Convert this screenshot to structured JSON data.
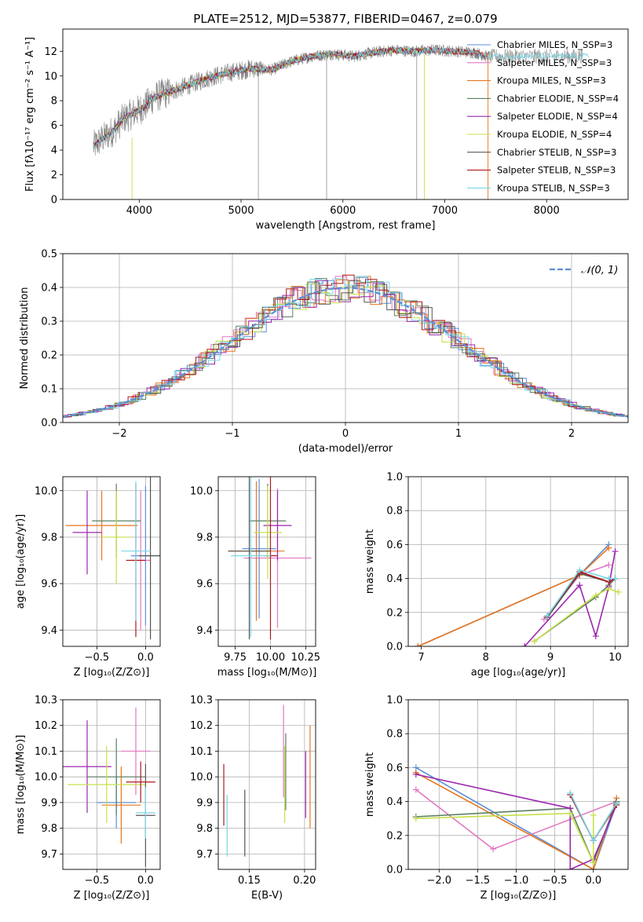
{
  "colors": {
    "chabrier_miles": "#5b8fd8",
    "salpeter_miles": "#e377c2",
    "kroupa_miles": "#e8761e",
    "chabrier_elodie": "#5a8060",
    "salpeter_elodie": "#9b27af",
    "kroupa_elodie": "#c6e04a",
    "chabrier_stelib": "#555555",
    "salpeter_stelib": "#b0191b",
    "kroupa_stelib": "#7ad7e6",
    "data": "#808080",
    "grid": "#b0b0b0"
  },
  "chart_data": [
    {
      "id": "spectrum",
      "type": "line",
      "title": "PLATE=2512, MJD=53877, FIBERID=0467, z=0.079",
      "xlabel": "wavelength [Angstrom, rest frame]",
      "ylabel": "Flux [fλ10⁻¹⁷ erg cm⁻² s⁻¹ A⁻¹]",
      "xlim": [
        3250,
        8800
      ],
      "ylim": [
        0,
        13.8
      ],
      "xticks": [
        "4000",
        "5000",
        "6000",
        "7000",
        "8000"
      ],
      "yticks": [
        "0",
        "2",
        "4",
        "6",
        "8",
        "10",
        "12"
      ],
      "grid": false,
      "legend_position": "right",
      "legend": [
        "Chabrier MILES, N_SSP=3",
        "Salpeter MILES, N_SSP=3",
        "Kroupa MILES, N_SSP=3",
        "Chabrier ELODIE, N_SSP=4",
        "Salpeter ELODIE, N_SSP=4",
        "Kroupa ELODIE, N_SSP=4",
        "Chabrier STELIB, N_SSP=3",
        "Salpeter STELIB, N_SSP=3",
        "Kroupa STELIB, N_SSP=3"
      ],
      "continuum": {
        "x": [
          3550,
          3650,
          3750,
          3850,
          3950,
          4050,
          4150,
          4300,
          4500,
          4700,
          4900,
          5100,
          5300,
          5500,
          5700,
          5900,
          6100,
          6300,
          6500,
          6700,
          6900,
          7100,
          7300,
          7400
        ],
        "y": [
          4.3,
          5.0,
          5.6,
          6.6,
          7.0,
          7.5,
          8.3,
          8.7,
          9.3,
          9.9,
          10.3,
          10.6,
          10.5,
          11.2,
          11.6,
          11.8,
          11.6,
          11.9,
          12.1,
          12.0,
          12.1,
          12.0,
          11.9,
          11.6
        ]
      }
    },
    {
      "id": "residuals",
      "type": "histogram",
      "xlabel": "(data-model)/error",
      "ylabel": "Normed distribution",
      "xlim": [
        -2.5,
        2.5
      ],
      "ylim": [
        0,
        0.5
      ],
      "xticks": [
        "−2",
        "−1",
        "0",
        "1",
        "2"
      ],
      "yticks": [
        "0.0",
        "0.1",
        "0.2",
        "0.3",
        "0.4",
        "0.5"
      ],
      "grid": true,
      "legend_position": "top-right",
      "legend": [
        "𝒩(0, 1)"
      ],
      "bin_width": 0.1
    },
    {
      "id": "age_vs_Z",
      "type": "errorbar",
      "xlabel": "Z [log₁₀(Z/Z⊙)]",
      "ylabel": "age  [log₁₀(age/yr)]",
      "xlim": [
        -0.85,
        0.15
      ],
      "ylim": [
        9.33,
        10.06
      ],
      "xticks": [
        "−0.5",
        "0.0"
      ],
      "yticks": [
        "9.4",
        "9.6",
        "9.8",
        "10.0"
      ],
      "points": [
        {
          "x": 0.0,
          "y": 9.72,
          "xerr": 0.15,
          "yerr": 0.3,
          "c": "chabrier_miles"
        },
        {
          "x": -0.05,
          "y": 9.7,
          "xerr": 0.1,
          "yerr": 0.3,
          "c": "salpeter_miles"
        },
        {
          "x": -0.45,
          "y": 9.85,
          "xerr": 0.37,
          "yerr": 0.15,
          "c": "kroupa_miles"
        },
        {
          "x": -0.3,
          "y": 9.87,
          "xerr": 0.25,
          "yerr": 0.16,
          "c": "chabrier_elodie"
        },
        {
          "x": -0.6,
          "y": 9.82,
          "xerr": 0.15,
          "yerr": 0.18,
          "c": "salpeter_elodie"
        },
        {
          "x": -0.3,
          "y": 9.8,
          "xerr": 0.15,
          "yerr": 0.2,
          "c": "kroupa_elodie"
        },
        {
          "x": 0.05,
          "y": 9.72,
          "xerr": 0.12,
          "yerr": 0.36,
          "c": "chabrier_stelib"
        },
        {
          "x": -0.1,
          "y": 9.7,
          "xerr": 0.1,
          "yerr": 0.33,
          "c": "salpeter_stelib"
        },
        {
          "x": -0.1,
          "y": 9.74,
          "xerr": 0.15,
          "yerr": 0.3,
          "c": "kroupa_stelib"
        }
      ]
    },
    {
      "id": "age_vs_mass",
      "type": "errorbar",
      "xlabel": "mass [log₁₀(M/M⊙)]",
      "ylabel": "",
      "xlim": [
        9.63,
        10.32
      ],
      "ylim": [
        9.33,
        10.06
      ],
      "xticks": [
        "9.75",
        "10.00",
        "10.25"
      ],
      "yticks": [
        "9.4",
        "9.6",
        "9.8",
        "10.0"
      ],
      "points": [
        {
          "x": 9.92,
          "y": 9.75,
          "xerr": 0.12,
          "yerr": 0.3,
          "c": "chabrier_miles"
        },
        {
          "x": 10.05,
          "y": 9.71,
          "xerr": 0.24,
          "yerr": 0.3,
          "c": "salpeter_miles"
        },
        {
          "x": 9.9,
          "y": 9.74,
          "xerr": 0.2,
          "yerr": 0.3,
          "c": "kroupa_miles"
        },
        {
          "x": 9.98,
          "y": 9.87,
          "xerr": 0.13,
          "yerr": 0.16,
          "c": "chabrier_elodie"
        },
        {
          "x": 10.05,
          "y": 9.85,
          "xerr": 0.1,
          "yerr": 0.15,
          "c": "salpeter_elodie"
        },
        {
          "x": 9.98,
          "y": 9.82,
          "xerr": 0.1,
          "yerr": 0.2,
          "c": "kroupa_elodie"
        },
        {
          "x": 9.85,
          "y": 9.74,
          "xerr": 0.15,
          "yerr": 0.38,
          "c": "chabrier_stelib"
        },
        {
          "x": 10.0,
          "y": 9.72,
          "xerr": 0.05,
          "yerr": 0.36,
          "c": "salpeter_stelib"
        },
        {
          "x": 9.86,
          "y": 9.72,
          "xerr": 0.14,
          "yerr": 0.35,
          "c": "kroupa_stelib"
        }
      ]
    },
    {
      "id": "weight_vs_age",
      "type": "line",
      "xlabel": "age  [log₁₀(age/yr)]",
      "ylabel": "mass weight",
      "xlim": [
        6.8,
        10.2
      ],
      "ylim": [
        0,
        1
      ],
      "xticks": [
        "7",
        "8",
        "9",
        "10"
      ],
      "yticks": [
        "0.0",
        "0.2",
        "0.4",
        "0.6",
        "0.8",
        "1.0"
      ],
      "grid": true,
      "series": [
        {
          "c": "chabrier_miles",
          "x": [
            6.95,
            9.45,
            9.9
          ],
          "y": [
            0.0,
            0.42,
            0.6
          ]
        },
        {
          "c": "salpeter_miles",
          "x": [
            8.9,
            9.45,
            9.9
          ],
          "y": [
            0.16,
            0.42,
            0.48
          ]
        },
        {
          "c": "kroupa_miles",
          "x": [
            6.95,
            9.45,
            9.9
          ],
          "y": [
            0.0,
            0.42,
            0.58
          ]
        },
        {
          "c": "chabrier_elodie",
          "x": [
            8.75,
            9.7,
            9.9,
            10.0
          ],
          "y": [
            0.03,
            0.29,
            0.36,
            0.4
          ]
        },
        {
          "c": "salpeter_elodie",
          "x": [
            8.6,
            9.45,
            9.7,
            9.9,
            10.0
          ],
          "y": [
            0.0,
            0.36,
            0.06,
            0.35,
            0.56
          ]
        },
        {
          "c": "kroupa_elodie",
          "x": [
            8.75,
            9.7,
            9.9,
            10.05
          ],
          "y": [
            0.03,
            0.3,
            0.34,
            0.32
          ]
        },
        {
          "c": "chabrier_stelib",
          "x": [
            8.95,
            9.45,
            9.9,
            10.0
          ],
          "y": [
            0.17,
            0.43,
            0.38,
            0.4
          ]
        },
        {
          "c": "salpeter_stelib",
          "x": [
            8.95,
            9.45,
            9.9,
            10.0
          ],
          "y": [
            0.18,
            0.44,
            0.38,
            0.4
          ]
        },
        {
          "c": "kroupa_stelib",
          "x": [
            8.95,
            9.45,
            9.9,
            10.0
          ],
          "y": [
            0.18,
            0.45,
            0.4,
            0.4
          ]
        }
      ]
    },
    {
      "id": "mass_vs_Z",
      "type": "errorbar",
      "xlabel": "Z [log₁₀(Z/Z⊙)]",
      "ylabel": "mass [log₁₀(M/M⊙)]",
      "xlim": [
        -0.85,
        0.15
      ],
      "ylim": [
        9.64,
        10.3
      ],
      "xticks": [
        "−0.5",
        "0.0"
      ],
      "yticks": [
        "9.7",
        "9.8",
        "9.9",
        "10.0",
        "10.1",
        "10.2",
        "10.3"
      ],
      "points": [
        {
          "x": -0.3,
          "y": 9.9,
          "xerr": 0.2,
          "yerr": 0.1,
          "c": "chabrier_miles"
        },
        {
          "x": -0.1,
          "y": 10.1,
          "xerr": 0.15,
          "yerr": 0.17,
          "c": "salpeter_miles"
        },
        {
          "x": -0.25,
          "y": 9.89,
          "xerr": 0.2,
          "yerr": 0.15,
          "c": "kroupa_miles"
        },
        {
          "x": -0.3,
          "y": 10.0,
          "xerr": 0.3,
          "yerr": 0.15,
          "c": "chabrier_elodie"
        },
        {
          "x": -0.6,
          "y": 10.04,
          "xerr": 0.25,
          "yerr": 0.18,
          "c": "salpeter_elodie"
        },
        {
          "x": -0.4,
          "y": 9.97,
          "xerr": 0.4,
          "yerr": 0.15,
          "c": "kroupa_elodie"
        },
        {
          "x": 0.0,
          "y": 9.85,
          "xerr": 0.1,
          "yerr": 0.2,
          "c": "chabrier_stelib"
        },
        {
          "x": -0.05,
          "y": 9.98,
          "xerr": 0.15,
          "yerr": 0.08,
          "c": "salpeter_stelib"
        },
        {
          "x": 0.0,
          "y": 9.86,
          "xerr": 0.1,
          "yerr": 0.1,
          "c": "kroupa_stelib"
        }
      ]
    },
    {
      "id": "mass_vs_ebv",
      "type": "errorbar",
      "xlabel": "E(B-V)",
      "ylabel": "",
      "xlim": [
        0.122,
        0.21
      ],
      "ylim": [
        9.64,
        10.3
      ],
      "xticks": [
        "0.15",
        "0.20"
      ],
      "yticks": [
        "9.7",
        "9.8",
        "9.9",
        "10.0",
        "10.1",
        "10.2",
        "10.3"
      ],
      "points": [
        {
          "x": 0.205,
          "y": 10.0,
          "xerr": 0.0,
          "yerr": 0.2,
          "c": "kroupa_miles"
        },
        {
          "x": 0.181,
          "y": 10.1,
          "xerr": 0.0,
          "yerr": 0.18,
          "c": "salpeter_miles"
        },
        {
          "x": 0.183,
          "y": 10.02,
          "xerr": 0.0,
          "yerr": 0.15,
          "c": "chabrier_elodie"
        },
        {
          "x": 0.201,
          "y": 9.97,
          "xerr": 0.0,
          "yerr": 0.13,
          "c": "salpeter_elodie"
        },
        {
          "x": 0.182,
          "y": 9.97,
          "xerr": 0.0,
          "yerr": 0.15,
          "c": "kroupa_elodie"
        },
        {
          "x": 0.146,
          "y": 9.82,
          "xerr": 0.0,
          "yerr": 0.13,
          "c": "chabrier_stelib"
        },
        {
          "x": 0.127,
          "y": 9.93,
          "xerr": 0.0,
          "yerr": 0.12,
          "c": "salpeter_stelib"
        },
        {
          "x": 0.13,
          "y": 9.81,
          "xerr": 0.0,
          "yerr": 0.12,
          "c": "kroupa_stelib"
        }
      ]
    },
    {
      "id": "weight_vs_Z",
      "type": "line",
      "xlabel": "Z [log₁₀(Z/Z⊙)]",
      "ylabel": "mass weight",
      "xlim": [
        -2.4,
        0.45
      ],
      "ylim": [
        0,
        1
      ],
      "xticks": [
        "−2.0",
        "−1.5",
        "−1.0",
        "−0.5",
        "0.0"
      ],
      "yticks": [
        "0.0",
        "0.2",
        "0.4",
        "0.6",
        "0.8",
        "1.0"
      ],
      "grid": true,
      "series": [
        {
          "c": "chabrier_miles",
          "x": [
            -2.3,
            0.0,
            0.3
          ],
          "y": [
            0.6,
            0.0,
            0.39
          ]
        },
        {
          "c": "salpeter_miles",
          "x": [
            -2.3,
            -1.3,
            0.3
          ],
          "y": [
            0.47,
            0.12,
            0.4
          ]
        },
        {
          "c": "kroupa_miles",
          "x": [
            -2.3,
            0.0,
            0.3
          ],
          "y": [
            0.57,
            0.0,
            0.42
          ]
        },
        {
          "c": "chabrier_elodie",
          "x": [
            -2.3,
            -0.3,
            0.0,
            0.3
          ],
          "y": [
            0.31,
            0.36,
            0.04,
            0.4
          ]
        },
        {
          "c": "salpeter_elodie",
          "x": [
            -2.3,
            -0.3,
            -0.3,
            0.0,
            0.3
          ],
          "y": [
            0.56,
            0.36,
            0.0,
            0.06,
            0.38
          ]
        },
        {
          "c": "kroupa_elodie",
          "x": [
            -2.3,
            -0.3,
            0.0,
            0.0
          ],
          "y": [
            0.3,
            0.33,
            0.04,
            0.32
          ]
        },
        {
          "c": "chabrier_stelib",
          "x": [
            -0.3,
            0.0,
            0.3
          ],
          "y": [
            0.44,
            0.17,
            0.39
          ]
        },
        {
          "c": "salpeter_stelib",
          "x": [
            -0.3,
            0.0,
            0.3
          ],
          "y": [
            0.44,
            0.17,
            0.38
          ]
        },
        {
          "c": "kroupa_stelib",
          "x": [
            -0.3,
            0.0,
            0.3
          ],
          "y": [
            0.45,
            0.17,
            0.39
          ]
        }
      ]
    }
  ]
}
